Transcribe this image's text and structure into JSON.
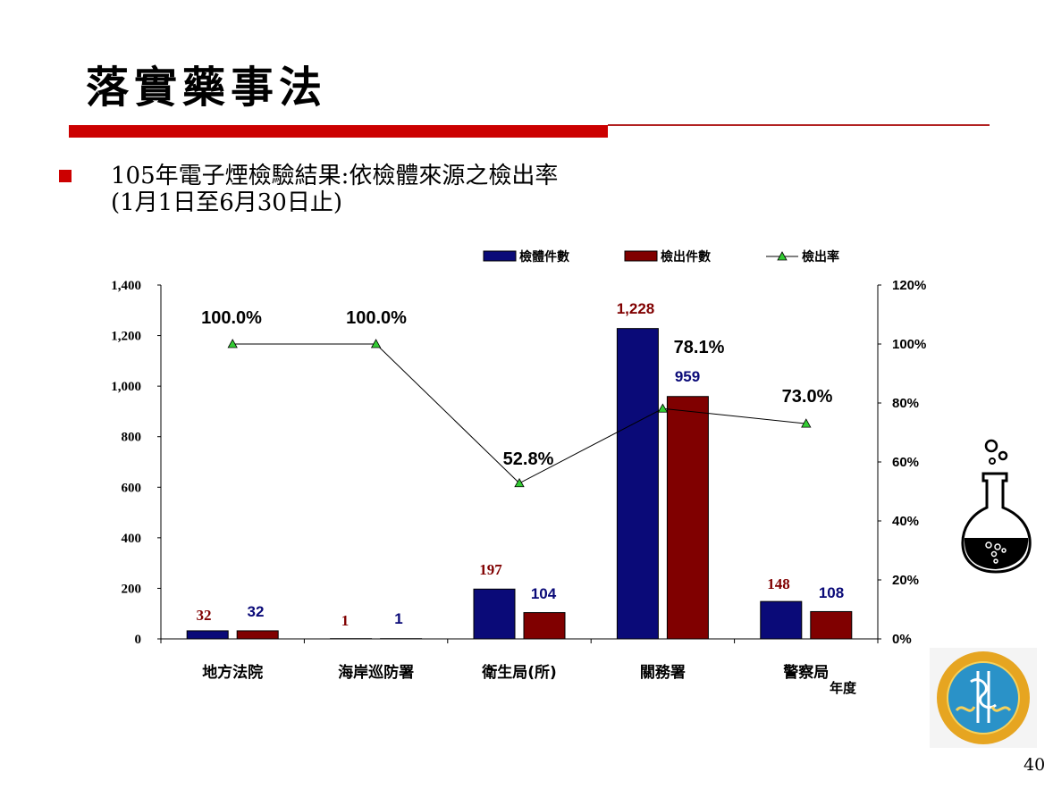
{
  "slide": {
    "title": "落實藥事法",
    "subtitle_line1": "105年電子煙檢驗結果:依檢體來源之檢出率",
    "subtitle_line2": "(1月1日至6月30日止)",
    "page_number": "40"
  },
  "colors": {
    "accent_red": "#cc0000",
    "series_samples": "#0a0a78",
    "series_detected": "#800000",
    "series_rate_marker": "#33cc33"
  },
  "icons": [
    "flask-icon",
    "agency-seal-logo"
  ],
  "chart_data": {
    "type": "bar",
    "categories": [
      "地方法院",
      "海岸巡防署",
      "衛生局(所)",
      "關務署",
      "警察局"
    ],
    "x_axis_unit_label": "年度",
    "series": [
      {
        "name": "檢體件數",
        "values": [
          32,
          1,
          197,
          1228,
          148
        ],
        "labels": [
          "32",
          "1",
          "197",
          "1,228",
          "148"
        ]
      },
      {
        "name": "檢出件數",
        "values": [
          32,
          1,
          104,
          959,
          108
        ],
        "labels": [
          "32",
          "1",
          "104",
          "959",
          "108"
        ]
      },
      {
        "name": "檢出率",
        "type": "line",
        "axis": "right",
        "values": [
          100.0,
          100.0,
          52.8,
          78.1,
          73.0
        ],
        "labels": [
          "100.0%",
          "100.0%",
          "52.8%",
          "78.1%",
          "73.0%"
        ]
      }
    ],
    "y_left": {
      "ylim": [
        0,
        1400
      ],
      "ticks": [
        "0",
        "200",
        "400",
        "600",
        "800",
        "1,000",
        "1,200",
        "1,400"
      ]
    },
    "y_right": {
      "ylim": [
        0,
        120
      ],
      "ticks": [
        "0%",
        "20%",
        "40%",
        "60%",
        "80%",
        "100%",
        "120%"
      ]
    },
    "legend_position": "top",
    "grid": false
  }
}
